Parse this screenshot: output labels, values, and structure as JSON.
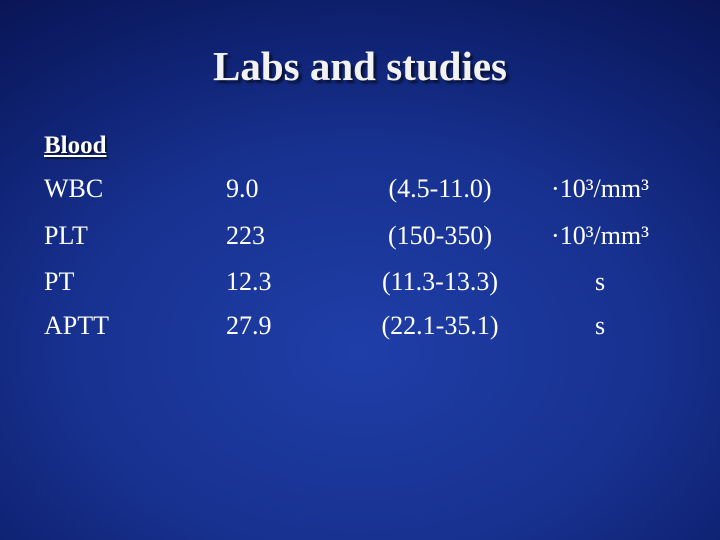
{
  "header": {
    "title": "Labs and studies"
  },
  "table": {
    "section": "Blood",
    "rows": [
      [
        "WBC",
        "9.0",
        "(4.5-11.0)",
        "·10³/mm³"
      ],
      [
        "PLT",
        "223",
        "(150-350)",
        "·10³/mm³"
      ],
      [
        "PT",
        "12.3",
        "(11.3-13.3)",
        "s"
      ],
      [
        "APTT",
        "27.9",
        "(22.1-35.1)",
        "s"
      ]
    ]
  }
}
